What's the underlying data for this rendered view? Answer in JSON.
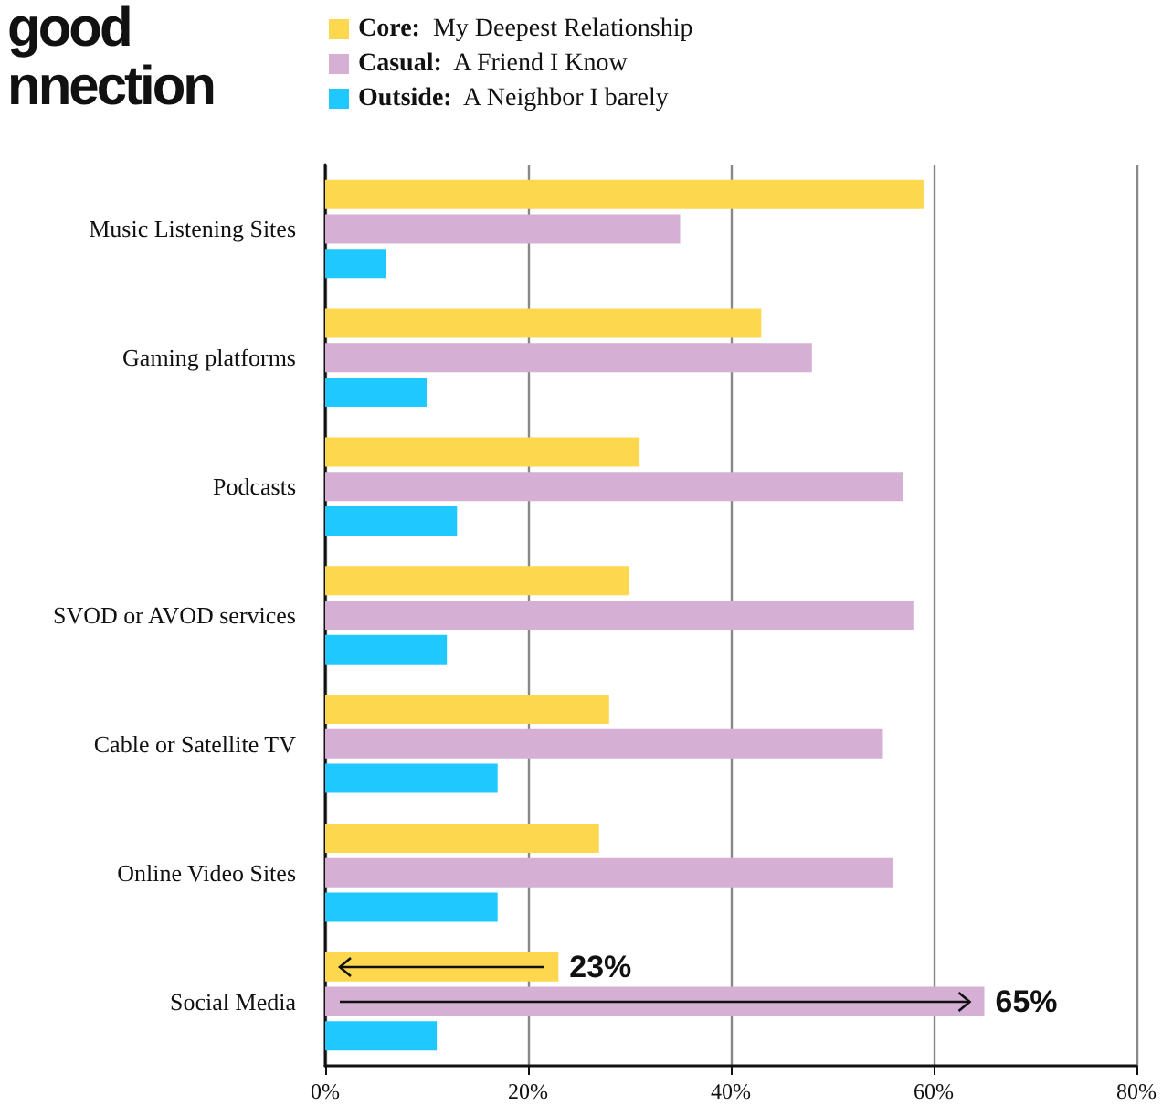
{
  "chart_data": {
    "type": "bar",
    "orientation": "horizontal",
    "title": "good\nnnection",
    "categories": [
      "Music Listening Sites",
      "Gaming platforms",
      "Podcasts",
      "SVOD or AVOD services",
      "Cable or Satellite TV",
      "Online Video Sites",
      "Social Media"
    ],
    "series": [
      {
        "name": "Core: My Deepest Relationship",
        "color": "#fdd84f",
        "values": [
          59,
          43,
          31,
          30,
          28,
          27,
          23
        ],
        "value_labels": [
          null,
          null,
          null,
          null,
          null,
          null,
          "23%"
        ]
      },
      {
        "name": "Casual: A Friend I Know",
        "color": "#d5b0d4",
        "values": [
          35,
          48,
          57,
          58,
          55,
          56,
          65
        ],
        "value_labels": [
          null,
          null,
          null,
          null,
          null,
          null,
          "65%"
        ]
      },
      {
        "name": "Outside: A Neighbor I barely",
        "color": "#1fc8fe",
        "values": [
          6,
          10,
          13,
          12,
          17,
          17,
          11
        ]
      }
    ],
    "xlim": [
      0,
      80
    ],
    "xticks": [
      {
        "value": 0,
        "label": "0%"
      },
      {
        "value": 20,
        "label": "20%"
      },
      {
        "value": 40,
        "label": "40%"
      },
      {
        "value": 60,
        "label": "60%"
      },
      {
        "value": 80,
        "label": "80%"
      }
    ],
    "grid": "x",
    "legend": "top"
  }
}
